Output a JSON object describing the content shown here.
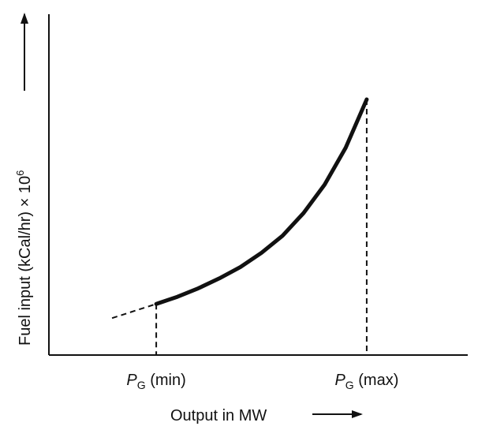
{
  "chart_data": {
    "type": "line",
    "title": "",
    "xlabel": "Output in MW",
    "ylabel": {
      "main": "Fuel input  (kCal/hr) × 10",
      "exponent": "6"
    },
    "x_ticks": [
      {
        "symbol": "P",
        "subscript": "G",
        "suffix": " (min)"
      },
      {
        "symbol": "P",
        "subscript": "G",
        "suffix": " (max)"
      }
    ],
    "series": [
      {
        "values": [
          {
            "x": 0.0,
            "y": 0.18
          },
          {
            "x": 0.1,
            "y": 0.205
          },
          {
            "x": 0.2,
            "y": 0.235
          },
          {
            "x": 0.3,
            "y": 0.27
          },
          {
            "x": 0.4,
            "y": 0.31
          },
          {
            "x": 0.5,
            "y": 0.36
          },
          {
            "x": 0.6,
            "y": 0.42
          },
          {
            "x": 0.7,
            "y": 0.5
          },
          {
            "x": 0.8,
            "y": 0.6
          },
          {
            "x": 0.9,
            "y": 0.73
          },
          {
            "x": 1.0,
            "y": 0.9
          }
        ]
      }
    ],
    "extrapolation": [
      {
        "x": -0.21,
        "y": 0.13
      },
      {
        "x": 0.0,
        "y": 0.18
      }
    ],
    "xlim": [
      -0.51,
      1.48
    ],
    "ylim": [
      0,
      1.2
    ],
    "grid": false,
    "legend": "none",
    "colors": {
      "ink": "#111111"
    }
  }
}
